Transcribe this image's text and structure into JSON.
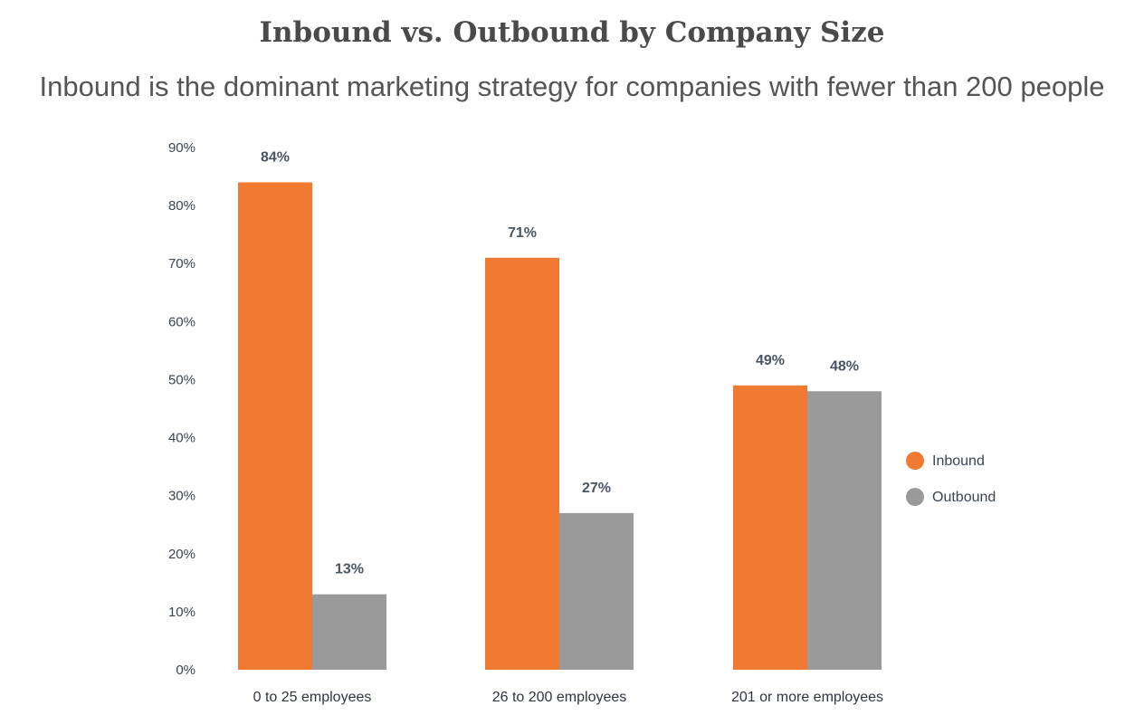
{
  "chart_data": {
    "type": "bar",
    "title": "Inbound vs. Outbound by Company Size",
    "subtitle": "Inbound is the dominant marketing strategy for companies with fewer than 200 people",
    "categories": [
      "0 to 25 employees",
      "26 to 200 employees",
      "201 or more employees"
    ],
    "series": [
      {
        "name": "Inbound",
        "color": "#f07a32",
        "values": [
          84,
          71,
          49
        ],
        "labels": [
          "84%",
          "71%",
          "49%"
        ]
      },
      {
        "name": "Outbound",
        "color": "#9a9a9a",
        "values": [
          13,
          27,
          48
        ],
        "labels": [
          "13%",
          "27%",
          "48%"
        ]
      }
    ],
    "ylim": [
      0,
      90
    ],
    "yticks": [
      "0%",
      "10%",
      "20%",
      "30%",
      "40%",
      "50%",
      "60%",
      "70%",
      "80%",
      "90%"
    ],
    "grid": false,
    "legend_position": "right"
  }
}
